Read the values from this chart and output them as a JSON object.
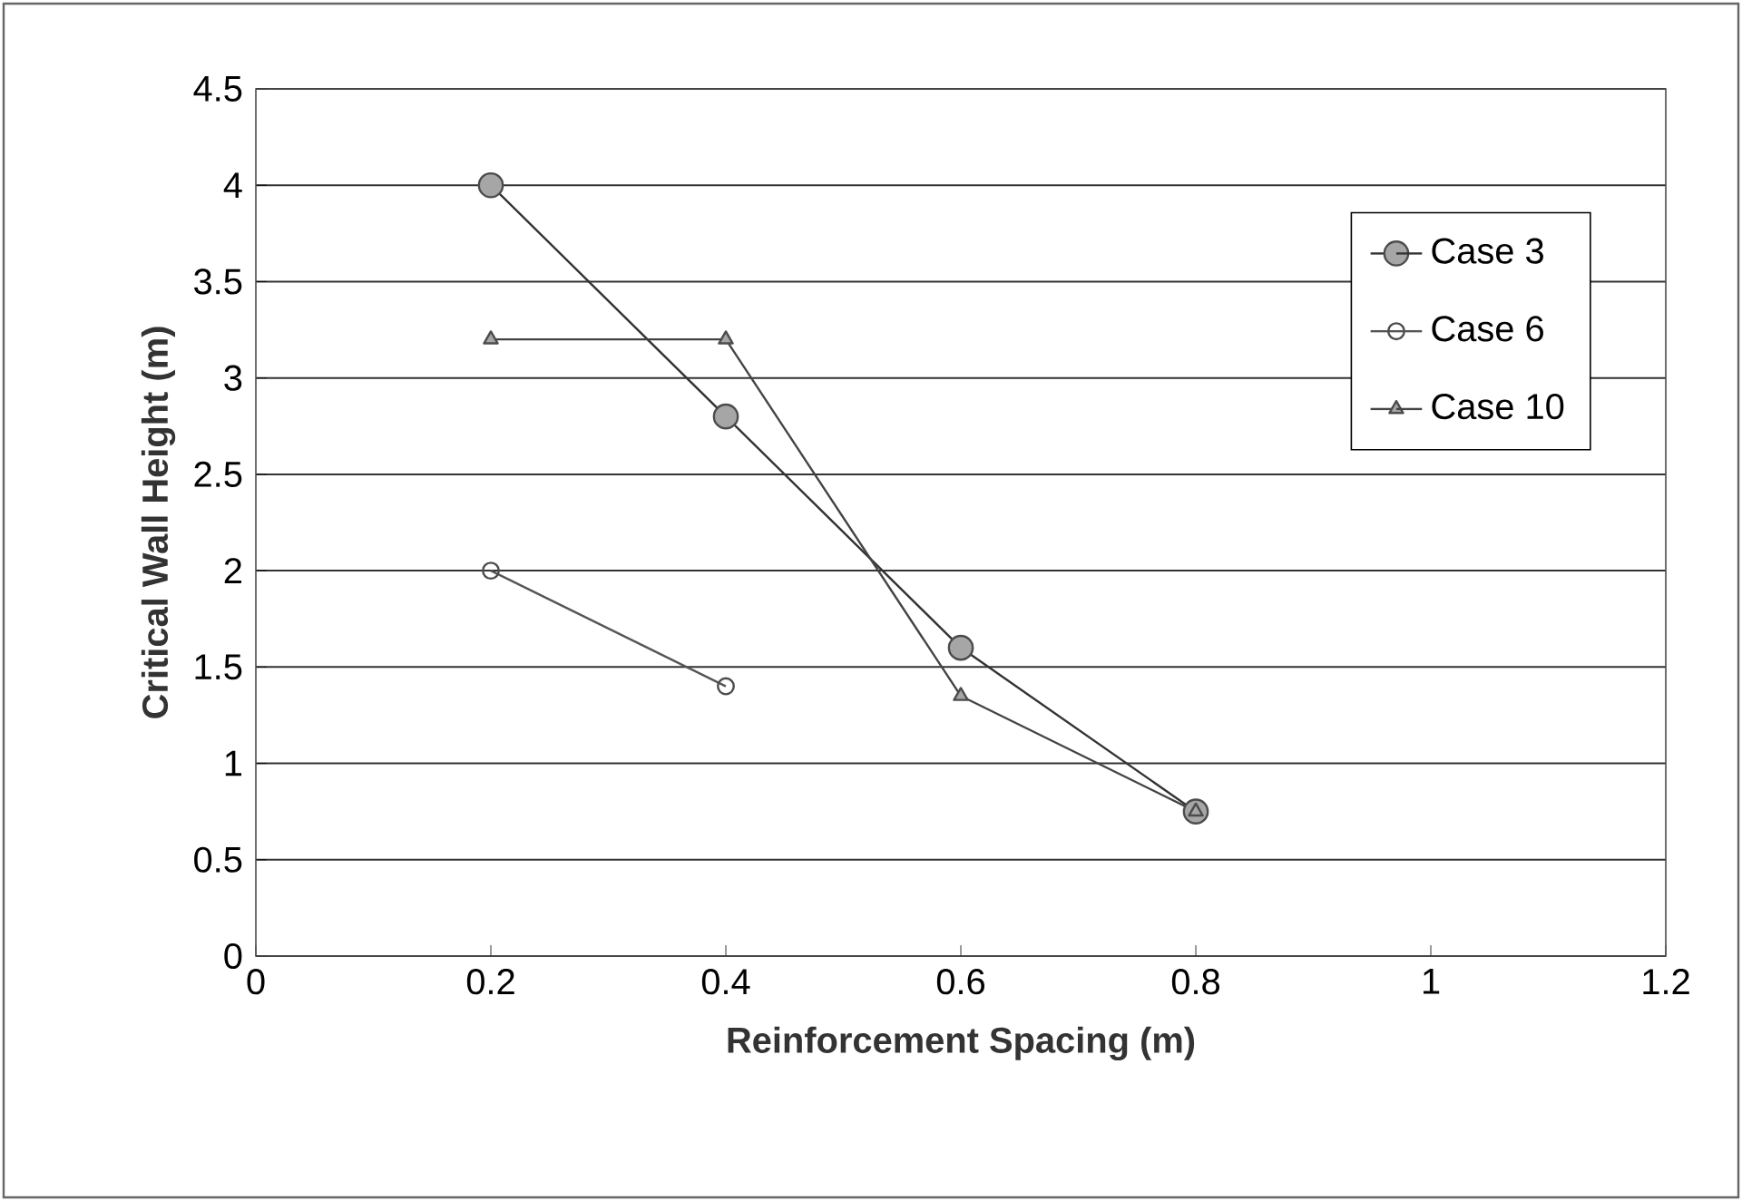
{
  "chart_data": {
    "type": "line",
    "xlabel": "Reinforcement Spacing (m)",
    "ylabel": "Critical Wall Height (m)",
    "x": [
      0.2,
      0.4,
      0.6,
      0.8
    ],
    "series": [
      {
        "name": "Case 3",
        "color": "#333333",
        "marker": "circle",
        "values": [
          4.0,
          2.8,
          1.6,
          0.75
        ]
      },
      {
        "name": "Case 6",
        "color": "#555555",
        "marker": "circle_open",
        "values": [
          2.0,
          1.4,
          null,
          null
        ]
      },
      {
        "name": "Case 10",
        "color": "#444444",
        "marker": "triangle",
        "values": [
          3.2,
          3.2,
          1.35,
          0.75
        ]
      }
    ],
    "xlim": [
      0,
      1.2
    ],
    "xticks": [
      0,
      0.2,
      0.4,
      0.6,
      0.8,
      1,
      1.2
    ],
    "ylim": [
      0,
      4.5
    ],
    "yticks": [
      0,
      0.5,
      1,
      1.5,
      2,
      2.5,
      3,
      3.5,
      4,
      4.5
    ],
    "grid": "y",
    "legend": "top right",
    "line_style": "solid"
  }
}
